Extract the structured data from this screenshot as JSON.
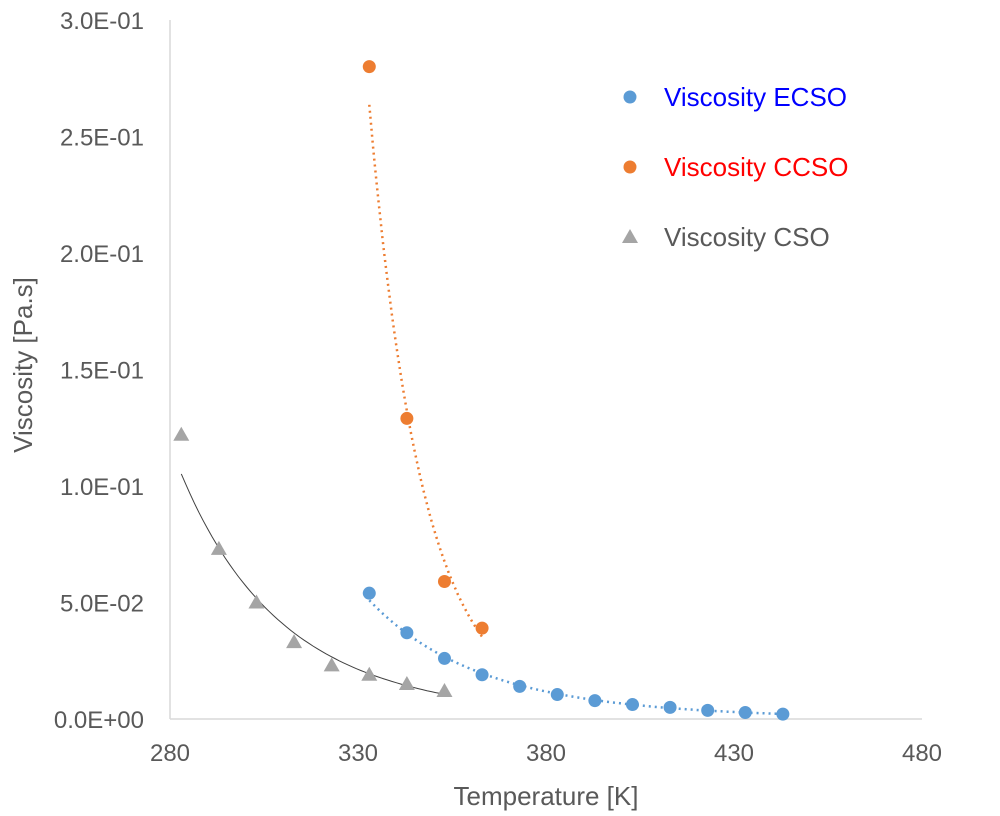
{
  "chart_data": {
    "type": "scatter",
    "title": "",
    "xlabel": "Temperature [K]",
    "ylabel": "Viscosity  [Pa.s]",
    "xlim": [
      280,
      480
    ],
    "ylim": [
      0,
      0.3
    ],
    "x_ticks": [
      "280",
      "330",
      "380",
      "430",
      "480"
    ],
    "y_ticks": [
      "0.0E+00",
      "5.0E-02",
      "1.0E-01",
      "1.5E-01",
      "2.0E-01",
      "2.5E-01",
      "3.0E-01"
    ],
    "grid": false,
    "legend_position": "top-right",
    "series": [
      {
        "name": "Viscosity ECSO",
        "marker": "circle",
        "color": "#5B9BD5",
        "label_color": "#0000FF",
        "trendline": "dotted",
        "x": [
          333,
          343,
          353,
          363,
          373,
          383,
          393,
          403,
          413,
          423,
          433,
          443
        ],
        "y": [
          0.054,
          0.037,
          0.026,
          0.019,
          0.014,
          0.0105,
          0.0079,
          0.0062,
          0.005,
          0.0037,
          0.0028,
          0.0021
        ]
      },
      {
        "name": "Viscosity CCSO",
        "marker": "circle",
        "color": "#ED7D31",
        "label_color": "#FF0000",
        "trendline": "dotted",
        "x": [
          333,
          343,
          353,
          363
        ],
        "y": [
          0.28,
          0.129,
          0.059,
          0.039
        ]
      },
      {
        "name": "Viscosity CSO",
        "marker": "triangle",
        "color": "#A5A5A5",
        "label_color": "#595959",
        "trendline": "solid",
        "x": [
          283,
          293,
          303,
          313,
          323,
          333,
          343,
          353
        ],
        "y": [
          0.122,
          0.073,
          0.05,
          0.033,
          0.023,
          0.019,
          0.015,
          0.012
        ]
      }
    ]
  }
}
